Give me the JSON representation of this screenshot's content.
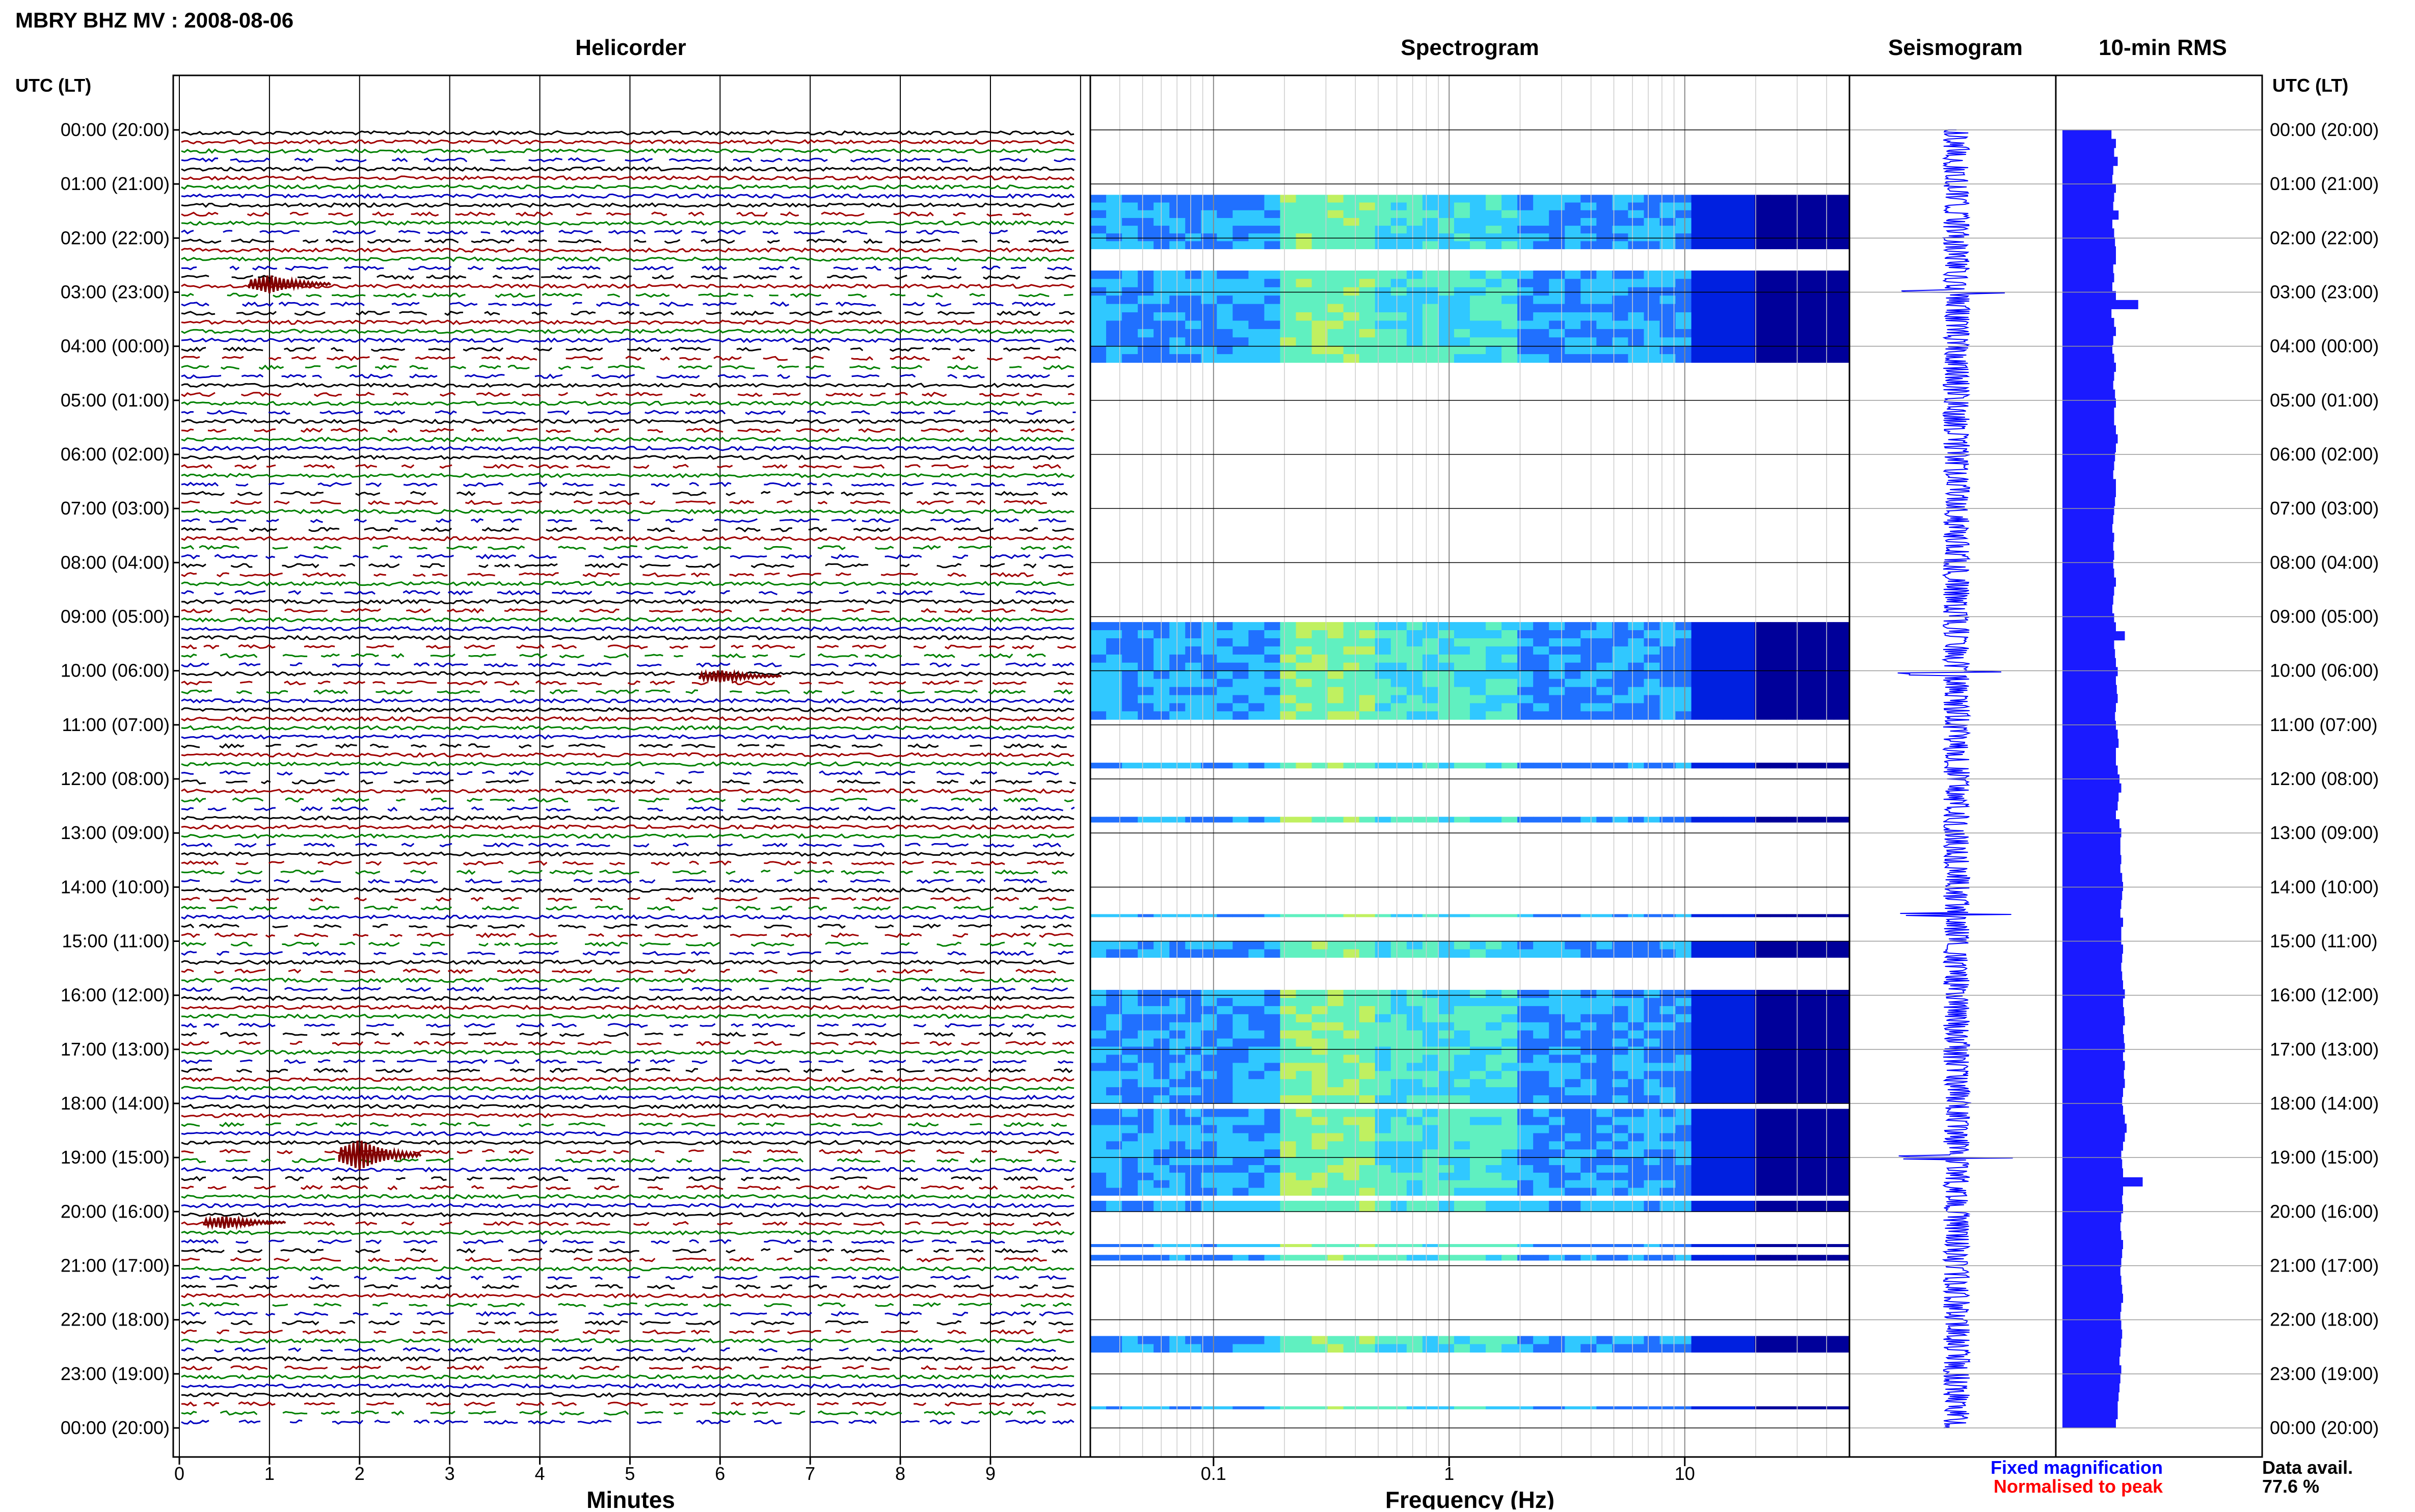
{
  "header": {
    "title": "MBRY BHZ MV : 2008-08-06"
  },
  "chart_data": {
    "type": "heatmap",
    "title": "MBRY BHZ MV : 2008-08-06",
    "time_axis_label": "UTC (LT)",
    "time_labels": [
      "00:00 (20:00)",
      "01:00 (21:00)",
      "02:00 (22:00)",
      "03:00 (23:00)",
      "04:00 (00:00)",
      "05:00 (01:00)",
      "06:00 (02:00)",
      "07:00 (03:00)",
      "08:00 (04:00)",
      "09:00 (05:00)",
      "10:00 (06:00)",
      "11:00 (07:00)",
      "12:00 (08:00)",
      "13:00 (09:00)",
      "14:00 (10:00)",
      "15:00 (11:00)",
      "16:00 (12:00)",
      "17:00 (13:00)",
      "18:00 (14:00)",
      "19:00 (15:00)",
      "20:00 (16:00)",
      "21:00 (17:00)",
      "22:00 (18:00)",
      "23:00 (19:00)",
      "00:00 (20:00)"
    ],
    "panels": {
      "helicorder": {
        "title": "Helicorder",
        "xlabel": "Minutes",
        "xticks": [
          "0",
          "1",
          "2",
          "3",
          "4",
          "5",
          "6",
          "7",
          "8",
          "9"
        ],
        "xlim": [
          0,
          10
        ],
        "trace_colors": [
          "#000000",
          "#a00000",
          "#008000",
          "#0000c0"
        ],
        "events": [
          {
            "time_utc_h": 2.85,
            "minute": 1.0,
            "amp": 3
          },
          {
            "time_utc_h": 10.1,
            "minute": 6.0,
            "amp": 2
          },
          {
            "time_utc_h": 18.95,
            "minute": 2.0,
            "amp": 5
          },
          {
            "time_utc_h": 20.2,
            "minute": 0.5,
            "amp": 2
          }
        ]
      },
      "spectrogram": {
        "title": "Spectrogram",
        "xlabel": "Frequency (Hz)",
        "xscale": "log",
        "xlim": [
          0.03,
          50
        ],
        "xticks": [
          "0.1",
          "1",
          "10"
        ],
        "colormap": [
          "#00009a",
          "#0020e0",
          "#2070ff",
          "#30c8ff",
          "#60f0c0",
          "#c0f060"
        ],
        "data_bands_utc_h": [
          [
            1.2,
            2.2
          ],
          [
            2.6,
            4.3
          ],
          [
            9.1,
            10.9
          ],
          [
            11.7,
            11.8
          ],
          [
            12.7,
            12.8
          ],
          [
            14.5,
            14.55
          ],
          [
            15.0,
            15.3
          ],
          [
            15.9,
            18.0
          ],
          [
            18.1,
            19.0
          ],
          [
            19.0,
            19.7
          ],
          [
            19.8,
            20.0
          ],
          [
            20.6,
            20.65
          ],
          [
            20.8,
            20.9
          ],
          [
            22.3,
            22.6
          ],
          [
            23.6,
            23.65
          ]
        ]
      },
      "seismogram": {
        "title": "Seismogram",
        "spikes_utc_h": [
          3.0,
          10.05,
          14.5,
          19.0
        ]
      },
      "rms": {
        "title": "10-min RMS",
        "xlim": [
          0,
          1
        ],
        "bar_levels": [
          0.55,
          0.6,
          0.58,
          0.62,
          0.57,
          0.56,
          0.6,
          0.58,
          0.57,
          0.63,
          0.56,
          0.58,
          0.59,
          0.6,
          0.6,
          0.57,
          0.58,
          0.56,
          0.6,
          0.85,
          0.55,
          0.58,
          0.6,
          0.57,
          0.56,
          0.58,
          0.6,
          0.58,
          0.57,
          0.59,
          0.6,
          0.58,
          0.58,
          0.6,
          0.62,
          0.6,
          0.59,
          0.58,
          0.57,
          0.6,
          0.6,
          0.59,
          0.58,
          0.57,
          0.56,
          0.58,
          0.57,
          0.58,
          0.57,
          0.58,
          0.6,
          0.58,
          0.57,
          0.56,
          0.58,
          0.6,
          0.7,
          0.58,
          0.59,
          0.6,
          0.62,
          0.6,
          0.61,
          0.62,
          0.6,
          0.59,
          0.6,
          0.62,
          0.63,
          0.6,
          0.6,
          0.62,
          0.64,
          0.66,
          0.63,
          0.62,
          0.6,
          0.64,
          0.66,
          0.65,
          0.65,
          0.66,
          0.65,
          0.67,
          0.68,
          0.67,
          0.66,
          0.65,
          0.68,
          0.66,
          0.66,
          0.68,
          0.67,
          0.66,
          0.67,
          0.68,
          0.7,
          0.68,
          0.69,
          0.7,
          0.68,
          0.69,
          0.7,
          0.68,
          0.7,
          0.69,
          0.7,
          0.68,
          0.67,
          0.68,
          0.7,
          0.72,
          0.7,
          0.68,
          0.66,
          0.67,
          0.68,
          0.9,
          0.68,
          0.67,
          0.68,
          0.66,
          0.65,
          0.66,
          0.68,
          0.67,
          0.66,
          0.65,
          0.66,
          0.67,
          0.68,
          0.66,
          0.65,
          0.66,
          0.67,
          0.66,
          0.65,
          0.64,
          0.66,
          0.65,
          0.64,
          0.63,
          0.62,
          0.62,
          0.6
        ]
      }
    },
    "legend": {
      "fixed": "Fixed magnification",
      "normalised": "Normalised to peak",
      "fixed_color": "#0000ff",
      "normalised_color": "#ff0000"
    },
    "availability": {
      "label": "Data avail.",
      "value": "77.6 %"
    }
  }
}
